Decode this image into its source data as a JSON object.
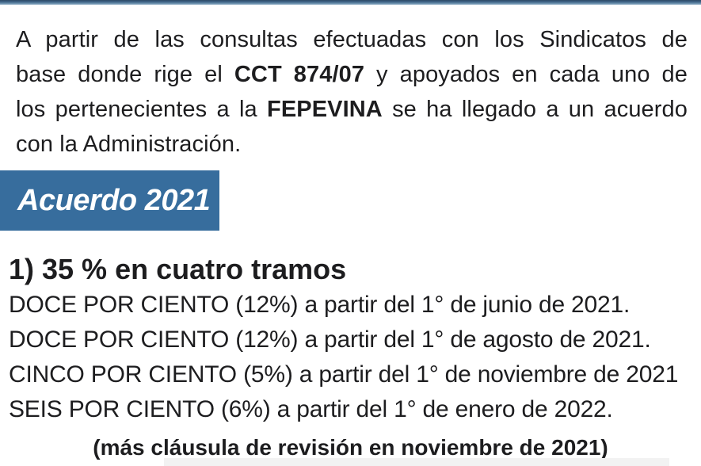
{
  "page": {
    "background": "#ffffff",
    "text_color": "#1d1d1f",
    "top_border_color_dark": "#2c4a66",
    "top_border_color_light": "#6a91ae"
  },
  "intro": {
    "lines": [
      {
        "segments": [
          {
            "t": "A partir de las consultas efectuadas con los Sindicatos de"
          }
        ]
      },
      {
        "segments": [
          {
            "t": "base donde rige el "
          },
          {
            "t": "CCT 874/07",
            "bold": true
          },
          {
            "t": " y apoyados en cada uno de"
          }
        ]
      },
      {
        "segments": [
          {
            "t": "los pertenecientes a la "
          },
          {
            "t": "FEPEVINA",
            "bold": true
          },
          {
            "t": " se ha llegado a un acuerdo"
          }
        ]
      },
      {
        "segments": [
          {
            "t": "con la Administración."
          }
        ]
      }
    ]
  },
  "banner": {
    "label": "Acuerdo 2021",
    "background": "#376d9d",
    "text_color": "#ffffff"
  },
  "agreement": {
    "heading": "1) 35 % en cuatro tramos",
    "items": [
      "DOCE POR CIENTO (12%) a partir del 1° de junio de 2021.",
      "DOCE POR CIENTO (12%) a partir del 1° de agosto de 2021.",
      "CINCO POR CIENTO (5%) a partir del 1° de noviembre de 2021",
      "SEIS POR CIENTO (6%) a partir del 1° de enero de 2022."
    ],
    "note": "(más cláusula de revisión en noviembre de 2021)"
  }
}
